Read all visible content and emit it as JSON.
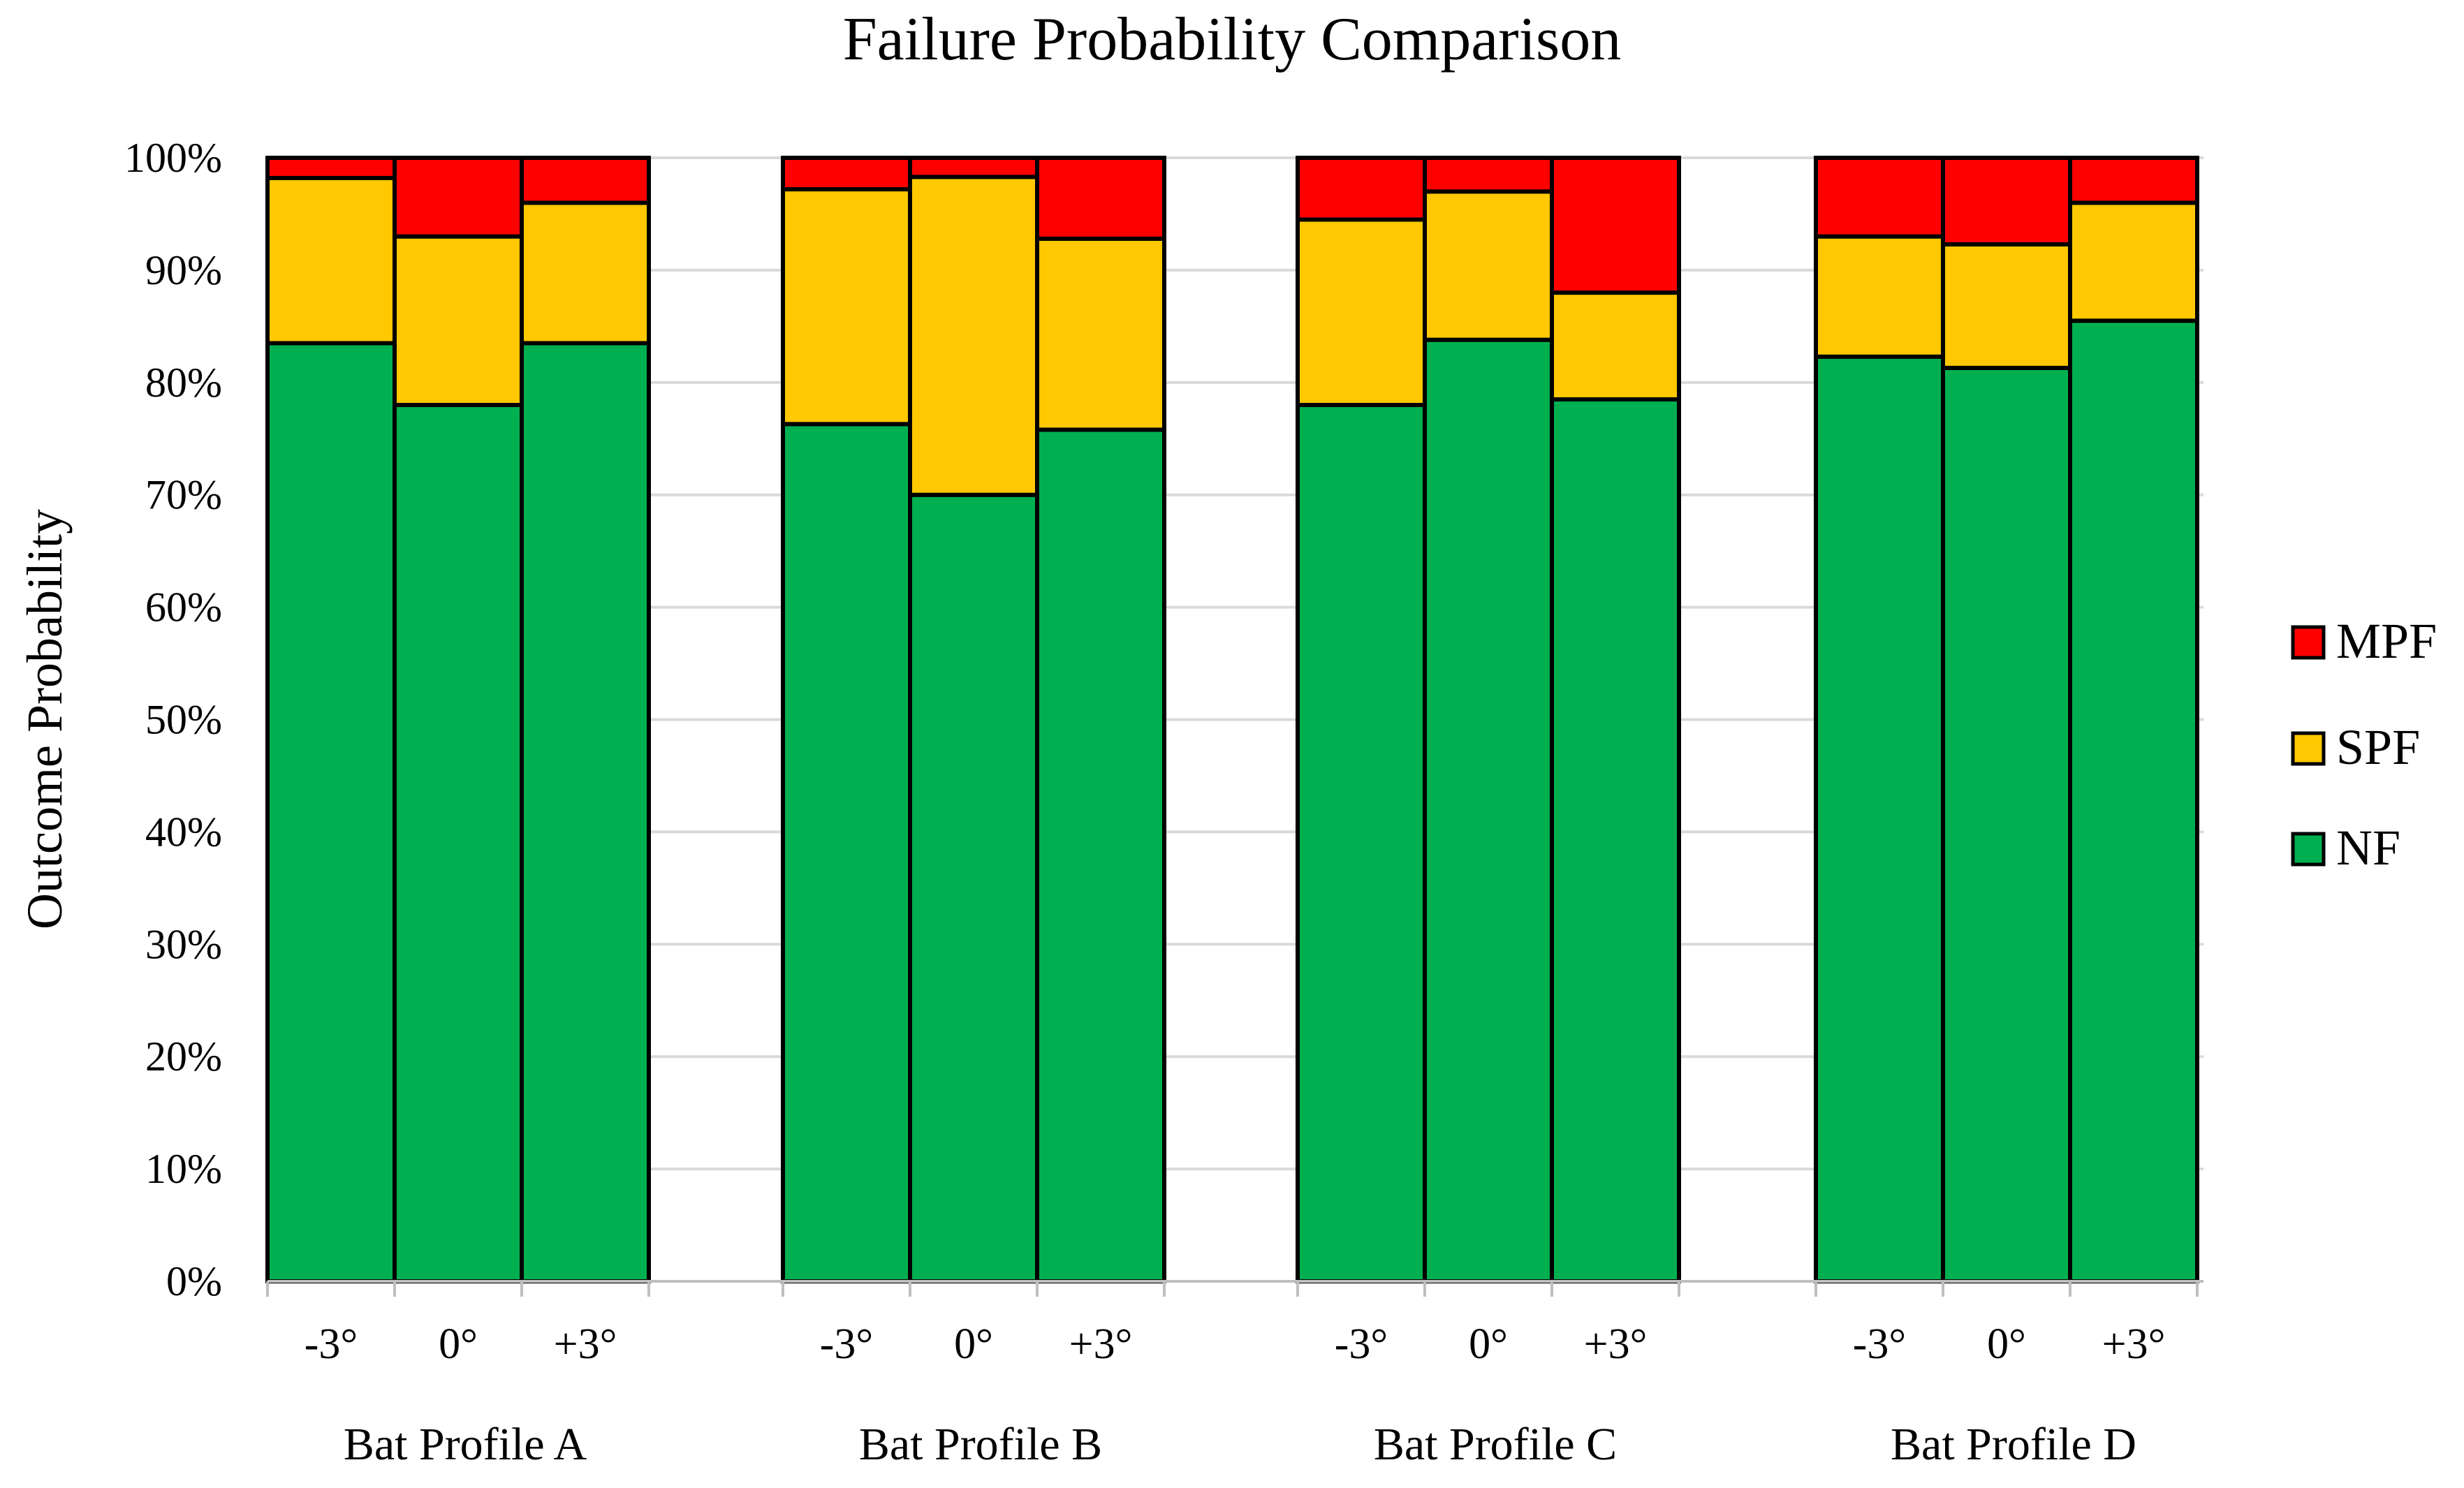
{
  "chart_data": {
    "type": "bar",
    "stacked": true,
    "title": "Failure Probability Comparison",
    "xlabel": "",
    "ylabel": "Outcome Probability",
    "ylim": [
      0,
      100
    ],
    "y_ticks": [
      "0%",
      "10%",
      "20%",
      "30%",
      "40%",
      "50%",
      "60%",
      "70%",
      "80%",
      "90%",
      "100%"
    ],
    "grid": true,
    "legend_position": "right",
    "groups": [
      {
        "label": "Bat Profile A",
        "categories": [
          "-3°",
          "0°",
          "+3°"
        ]
      },
      {
        "label": "Bat Profile B",
        "categories": [
          "-3°",
          "0°",
          "+3°"
        ]
      },
      {
        "label": "Bat Profile C",
        "categories": [
          "-3°",
          "0°",
          "+3°"
        ]
      },
      {
        "label": "Bat Profile D",
        "categories": [
          "-3°",
          "0°",
          "+3°"
        ]
      }
    ],
    "series": [
      {
        "name": "NF",
        "color": "#00b050",
        "values": [
          83.5,
          78.0,
          83.5,
          76.3,
          70.0,
          75.8,
          78.0,
          83.8,
          78.5,
          82.3,
          81.3,
          85.5
        ]
      },
      {
        "name": "SPF",
        "color": "#ffc800",
        "values": [
          14.7,
          15.0,
          12.5,
          20.9,
          28.3,
          17.0,
          16.5,
          13.2,
          9.5,
          10.7,
          11.0,
          10.5
        ]
      },
      {
        "name": "MPF",
        "color": "#ff0000",
        "values": [
          1.8,
          7.0,
          4.0,
          2.8,
          1.7,
          7.2,
          5.5,
          3.0,
          12.0,
          7.0,
          7.7,
          4.0
        ]
      }
    ],
    "legend_order": [
      "MPF",
      "SPF",
      "NF"
    ]
  }
}
